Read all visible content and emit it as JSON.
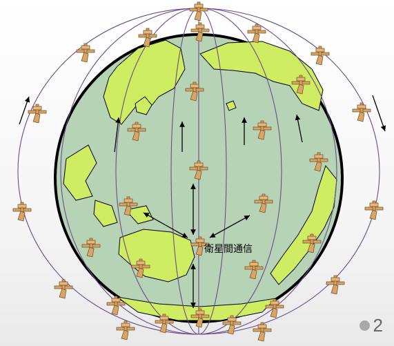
{
  "annotation": {
    "isl_label": "衛星間通信"
  },
  "slide": {
    "page_number": "2"
  },
  "colors": {
    "ocean": "#b7d3b6",
    "land": "#cfed62",
    "globe_outline": "#000000",
    "orbit_line": "#6a4a8c",
    "satellite_body": "#d9a566",
    "satellite_outline": "#6b4a1f"
  },
  "icons": {
    "satellite": "satellite-icon",
    "link_arrow": "arrow-icon"
  }
}
